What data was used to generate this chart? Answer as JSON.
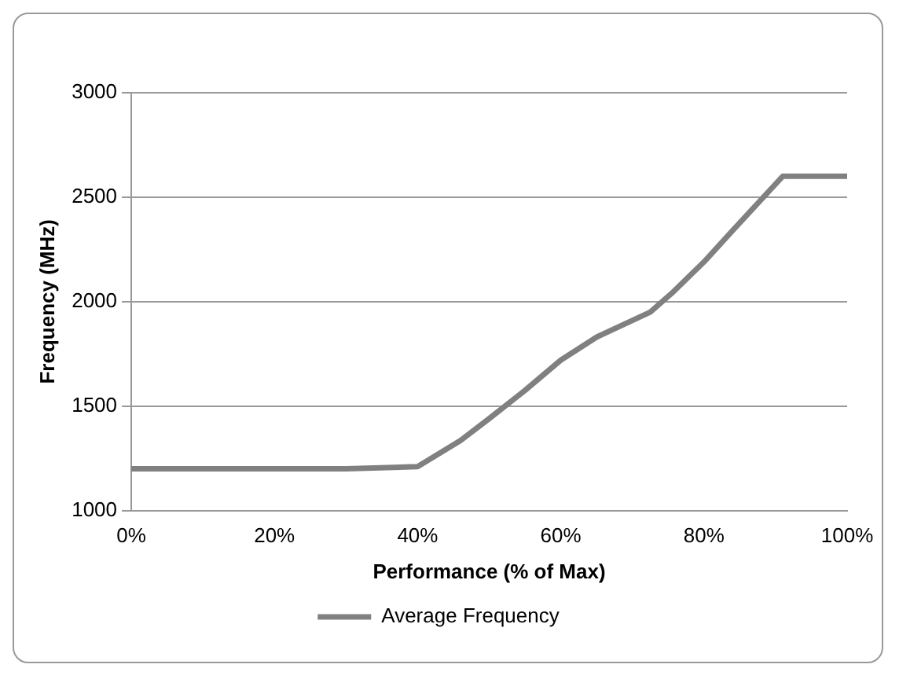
{
  "chart_data": {
    "type": "line",
    "xlabel": "Performance (% of Max)",
    "ylabel": "Frequency (MHz)",
    "x": [
      0,
      30,
      40,
      46,
      50,
      55,
      60,
      65,
      72.5,
      75.5,
      80,
      84,
      91,
      100
    ],
    "series": [
      {
        "name": "Average Frequency",
        "color": "#808080",
        "values": [
          1200,
          1200,
          1210,
          1335,
          1440,
          1575,
          1720,
          1830,
          1950,
          2040,
          2190,
          2340,
          2600,
          2600
        ]
      }
    ],
    "xlim": [
      0,
      100
    ],
    "xticks": [
      {
        "value": 0,
        "label": "0%"
      },
      {
        "value": 20,
        "label": "20%"
      },
      {
        "value": 40,
        "label": "40%"
      },
      {
        "value": 60,
        "label": "60%"
      },
      {
        "value": 80,
        "label": "80%"
      },
      {
        "value": 100,
        "label": "100%"
      }
    ],
    "ylim": [
      1000,
      3000
    ],
    "yticks": [
      1000,
      1500,
      2000,
      2500,
      3000
    ],
    "grid": "y",
    "legend": "bottom",
    "marker": "none",
    "line_style": "solid"
  }
}
